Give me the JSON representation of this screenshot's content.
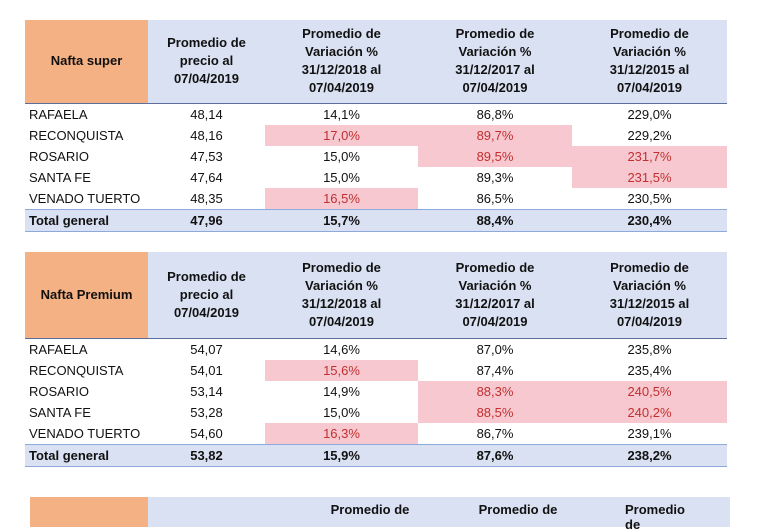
{
  "tables": [
    {
      "header": [
        "Nafta super",
        "Promedio de precio al 07/04/2019",
        "Promedio de Variación % 31/12/2018 al 07/04/2019",
        "Promedio de Variación % 31/12/2017 al 07/04/2019",
        "Promedio de Variación % 31/12/2015 al 07/04/2019"
      ],
      "rows": [
        [
          "RAFAELA",
          "48,14",
          "14,1%",
          "86,8%",
          "229,0%"
        ],
        [
          "RECONQUISTA",
          "48,16",
          "17,0%",
          "89,7%",
          "229,2%"
        ],
        [
          "ROSARIO",
          "47,53",
          "15,0%",
          "89,5%",
          "231,7%"
        ],
        [
          "SANTA FE",
          "47,64",
          "15,0%",
          "89,3%",
          "231,5%"
        ],
        [
          "VENADO TUERTO",
          "48,35",
          "16,5%",
          "86,5%",
          "230,5%"
        ]
      ],
      "total": [
        "Total general",
        "47,96",
        "15,7%",
        "88,4%",
        "230,4%"
      ],
      "highlighted": [
        [
          1,
          2
        ],
        [
          1,
          3
        ],
        [
          2,
          3
        ],
        [
          2,
          4
        ],
        [
          3,
          4
        ],
        [
          4,
          2
        ]
      ]
    },
    {
      "header": [
        "Nafta Premium",
        "Promedio de precio al 07/04/2019",
        "Promedio de Variación % 31/12/2018 al 07/04/2019",
        "Promedio de Variación % 31/12/2017 al 07/04/2019",
        "Promedio de Variación % 31/12/2015 al 07/04/2019"
      ],
      "rows": [
        [
          "RAFAELA",
          "54,07",
          "14,6%",
          "87,0%",
          "235,8%"
        ],
        [
          "RECONQUISTA",
          "54,01",
          "15,6%",
          "87,4%",
          "235,4%"
        ],
        [
          "ROSARIO",
          "53,14",
          "14,9%",
          "88,3%",
          "240,5%"
        ],
        [
          "SANTA FE",
          "53,28",
          "15,0%",
          "88,5%",
          "240,2%"
        ],
        [
          "VENADO TUERTO",
          "54,60",
          "16,3%",
          "86,7%",
          "239,1%"
        ]
      ],
      "total": [
        "Total general",
        "53,82",
        "15,9%",
        "87,6%",
        "238,2%"
      ],
      "highlighted": [
        [
          1,
          2
        ],
        [
          2,
          3
        ],
        [
          2,
          4
        ],
        [
          3,
          3
        ],
        [
          3,
          4
        ],
        [
          4,
          2
        ]
      ]
    }
  ],
  "partial_table": {
    "header": [
      "Promedio de",
      "Promedio de",
      "Promedio de"
    ]
  }
}
